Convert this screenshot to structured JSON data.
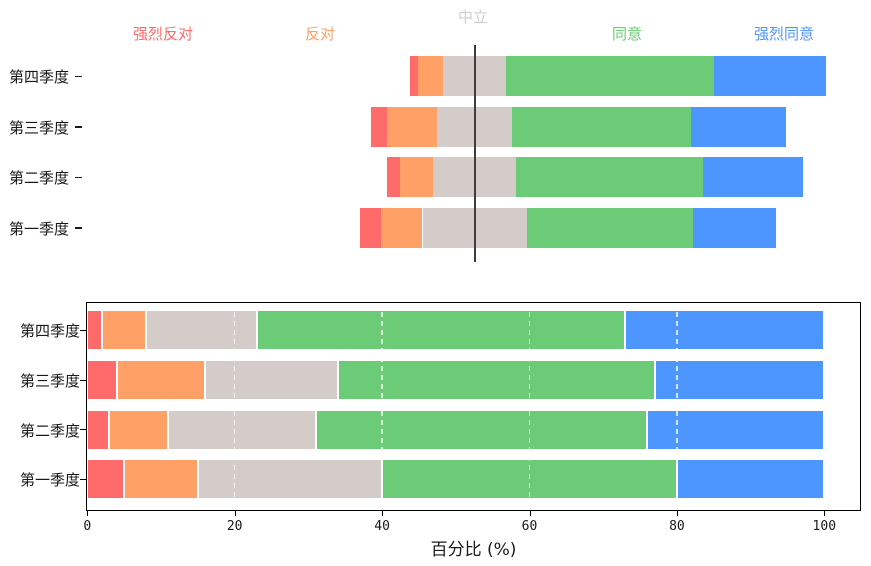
{
  "palette": {
    "strongly_disagree": "#FF6B6B",
    "disagree": "#FFA066",
    "neutral": "#D3CCC9",
    "agree": "#6BCB77",
    "strongly_agree": "#4D96FF",
    "neutral_line": "#3d3d3d",
    "axis": "#000000",
    "text": "#1a1a1a"
  },
  "levels": [
    "强烈反对",
    "反对",
    "中立",
    "同意",
    "强烈同意"
  ],
  "chart_data": [
    {
      "type": "bar",
      "subtype": "diverging_stacked_horizontal_likert",
      "title": "",
      "categories": [
        "第四季度",
        "第三季度",
        "第二季度",
        "第一季度"
      ],
      "series": [
        {
          "name": "强烈反对",
          "color": "#FF6B6B",
          "values": [
            2,
            4,
            3,
            5
          ]
        },
        {
          "name": "反对",
          "color": "#FFA066",
          "values": [
            6,
            12,
            8,
            10
          ]
        },
        {
          "name": "中立",
          "color": "#D3CCC9",
          "values": [
            15,
            18,
            20,
            25
          ]
        },
        {
          "name": "同意",
          "color": "#6BCB77",
          "values": [
            50,
            43,
            45,
            40
          ]
        },
        {
          "name": "强烈同意",
          "color": "#4D96FF",
          "values": [
            27,
            23,
            24,
            20
          ]
        }
      ],
      "header_labels": [
        "强烈反对",
        "反对",
        "中立",
        "同意",
        "强烈同意"
      ],
      "alignment_note": "each bar offset so the midpoint of the neutral segment sits on the vertical line",
      "unit": "%"
    },
    {
      "type": "bar",
      "subtype": "stacked_horizontal_100pct",
      "title": "",
      "categories": [
        "第四季度",
        "第三季度",
        "第二季度",
        "第一季度"
      ],
      "series": [
        {
          "name": "强烈反对",
          "color": "#FF6B6B",
          "values": [
            2,
            4,
            3,
            5
          ]
        },
        {
          "name": "反对",
          "color": "#FFA066",
          "values": [
            6,
            12,
            8,
            10
          ]
        },
        {
          "name": "中立",
          "color": "#D3CCC9",
          "values": [
            15,
            18,
            20,
            25
          ]
        },
        {
          "name": "同意",
          "color": "#6BCB77",
          "values": [
            50,
            43,
            45,
            40
          ]
        },
        {
          "name": "强烈同意",
          "color": "#4D96FF",
          "values": [
            27,
            23,
            24,
            20
          ]
        }
      ],
      "xlabel": "百分比 (%)",
      "xticks": [
        "0",
        "20",
        "40",
        "60",
        "80",
        "100"
      ],
      "xlim": [
        0,
        105
      ],
      "grid": "dashed vertical lines at 20/40/60/80/100, drawn over bars"
    }
  ]
}
